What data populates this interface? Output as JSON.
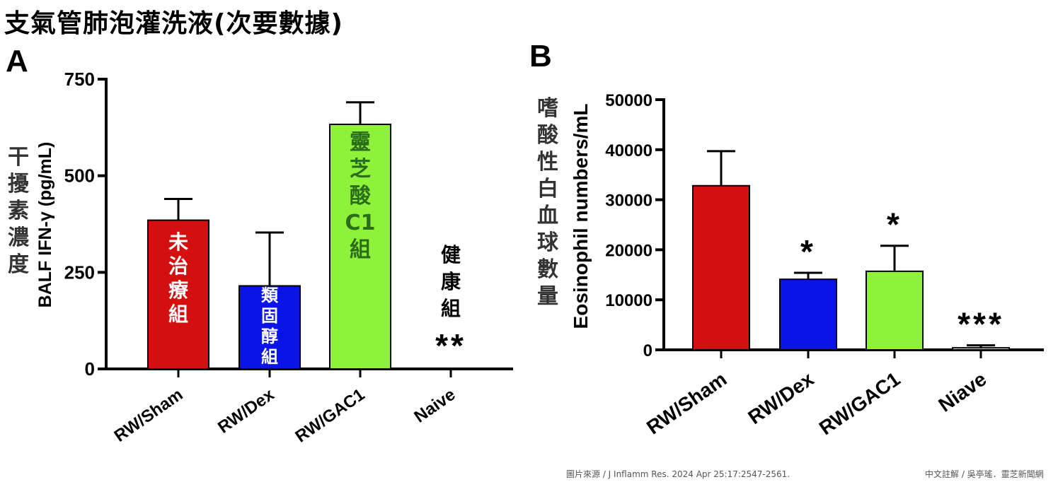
{
  "page_title": "支氣管肺泡灌洗液(次要數據)",
  "footer": {
    "source": "圖片來源 / J Inflamm Res. 2024 Apr 25:17:2547-2561.",
    "credit": "中文註解 / 吳亭瑤．靈芝新聞網"
  },
  "chart_data": [
    {
      "panel": "A",
      "type": "bar",
      "ylabel": "BALF IFN-γ (pg/mL)",
      "ylabel_cn": "干擾素濃度",
      "ylim": [
        0,
        750
      ],
      "yticks": [
        "0",
        "250",
        "500",
        "750"
      ],
      "categories": [
        "RW/Sham",
        "RW/Dex",
        "RW/GAC1",
        "Naive"
      ],
      "values": [
        385,
        215,
        633,
        0
      ],
      "errors": [
        55,
        138,
        57,
        0
      ],
      "colors": [
        "#d40f0f",
        "#0a14e6",
        "#8ef23a",
        "#ffffff"
      ],
      "bar_labels": [
        "未治療組",
        "類固醇組",
        "靈芝酸C1組",
        "健康組"
      ],
      "significance": [
        "",
        "",
        "",
        "**"
      ]
    },
    {
      "panel": "B",
      "type": "bar",
      "ylabel": "Eosinophil numbers/mL",
      "ylabel_cn": "嗜酸性白血球數量",
      "ylim": [
        0,
        50000
      ],
      "yticks": [
        "0",
        "10000",
        "20000",
        "30000",
        "40000",
        "50000"
      ],
      "categories": [
        "RW/Sham",
        "RW/Dex",
        "RW/GAC1",
        "Niave"
      ],
      "values": [
        32800,
        14100,
        15700,
        400
      ],
      "errors": [
        6900,
        1300,
        5100,
        500
      ],
      "colors": [
        "#d40f0f",
        "#0a14e6",
        "#8ef23a",
        "#ffffff"
      ],
      "significance": [
        "",
        "*",
        "*",
        "***"
      ]
    }
  ]
}
